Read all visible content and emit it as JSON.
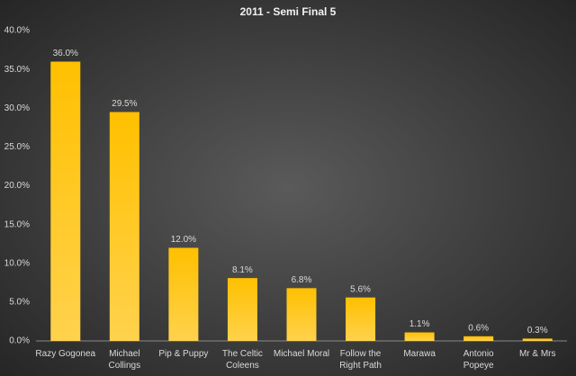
{
  "chart_data": {
    "type": "bar",
    "title": "2011 - Semi Final 5",
    "categories": [
      "Razy Gogonea",
      "Michael\nCollings",
      "Pip & Puppy",
      "The Celtic\nColeens",
      "Michael Moral",
      "Follow the\nRight Path",
      "Marawa",
      "Antonio\nPopeye",
      "Mr & Mrs"
    ],
    "values": [
      36.0,
      29.5,
      12.0,
      8.1,
      6.8,
      5.6,
      1.1,
      0.6,
      0.3
    ],
    "value_labels": [
      "36.0%",
      "29.5%",
      "12.0%",
      "8.1%",
      "6.8%",
      "5.6%",
      "1.1%",
      "0.6%",
      "0.3%"
    ],
    "color": "#ffc000",
    "ylim": [
      0,
      40
    ],
    "yticks": [
      {
        "value": 0,
        "label": "0.0%"
      },
      {
        "value": 5,
        "label": "5.0%"
      },
      {
        "value": 10,
        "label": "10.0%"
      },
      {
        "value": 15,
        "label": "15.0%"
      },
      {
        "value": 20,
        "label": "20.0%"
      },
      {
        "value": 25,
        "label": "25.0%"
      },
      {
        "value": 30,
        "label": "30.0%"
      },
      {
        "value": 35,
        "label": "35.0%"
      },
      {
        "value": 40,
        "label": "40.0%"
      }
    ],
    "grid": false
  }
}
